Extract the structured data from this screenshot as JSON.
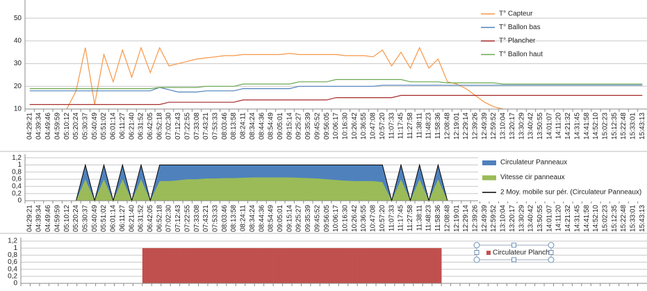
{
  "chart_data": [
    {
      "type": "line",
      "categories": [
        "04:29:21",
        "04:39:34",
        "04:49:46",
        "04:59:59",
        "05:10:12",
        "05:20:24",
        "05:30:37",
        "05:40:49",
        "05:51:02",
        "06:01:14",
        "06:11:27",
        "06:21:40",
        "06:31:52",
        "06:42:05",
        "06:52:18",
        "07:02:30",
        "07:12:43",
        "07:22:55",
        "07:33:08",
        "07:43:21",
        "07:53:33",
        "08:03:46",
        "08:13:58",
        "08:24:11",
        "08:34:24",
        "08:44:36",
        "08:54:49",
        "09:05:01",
        "09:15:14",
        "09:25:27",
        "09:35:39",
        "09:45:52",
        "09:56:05",
        "10:06:17",
        "10:16:30",
        "10:26:42",
        "10:36:55",
        "10:47:08",
        "10:57:20",
        "11:07:33",
        "11:17:45",
        "11:27:58",
        "11:38:11",
        "11:48:23",
        "11:58:36",
        "12:08:48",
        "12:19:01",
        "12:29:14",
        "12:39:26",
        "12:49:39",
        "12:59:52",
        "13:10:04",
        "13:20:17",
        "13:30:29",
        "13:40:42",
        "13:50:55",
        "14:01:07",
        "14:11:20",
        "14:21:32",
        "14:31:45",
        "14:41:58",
        "14:52:10",
        "15:02:23",
        "15:12:35",
        "15:22:48",
        "15:33:01",
        "15:43:13"
      ],
      "series": [
        {
          "name": "T° Capteur",
          "color": "#f79646",
          "values": [
            null,
            null,
            null,
            null,
            10,
            18,
            37,
            12,
            34,
            22,
            36,
            24,
            37,
            26,
            37,
            29,
            30,
            31,
            32,
            32.5,
            33,
            33.5,
            33.5,
            34,
            34,
            34,
            34,
            34,
            34.5,
            34,
            34,
            34,
            34,
            34,
            33.5,
            33.5,
            33.5,
            33,
            36,
            29,
            35,
            28,
            37,
            28,
            32,
            22,
            21,
            19,
            16,
            13,
            11,
            10,
            null,
            null,
            null,
            null,
            null,
            null,
            null,
            null,
            null,
            null,
            null,
            null,
            null,
            null,
            null
          ]
        },
        {
          "name": "T° Ballon bas",
          "color": "#4f81bd",
          "values": [
            18,
            18,
            18,
            18,
            18,
            18,
            18,
            18,
            18,
            18,
            18,
            18,
            18,
            18,
            19.5,
            18.5,
            17.5,
            17.5,
            17.5,
            18,
            18,
            18,
            18,
            19,
            19,
            19,
            19,
            19,
            19,
            20,
            20,
            20,
            20,
            20,
            20,
            20,
            20,
            20,
            20.5,
            20.5,
            20.5,
            20.5,
            20.5,
            20.5,
            20.5,
            20.5,
            20.5,
            20.5,
            20.5,
            20.5,
            20.5,
            20.5,
            20.5,
            20.5,
            20.5,
            20.5,
            20.5,
            20.5,
            20.5,
            20.5,
            20.5,
            20.5,
            20.5,
            20.5,
            20.5,
            20.5,
            20.5
          ]
        },
        {
          "name": "T° Plancher",
          "color": "#a52a2a",
          "values": [
            12,
            12,
            12,
            12,
            12,
            12,
            12,
            12,
            12,
            12,
            12,
            12,
            12,
            12,
            12,
            13,
            13,
            13,
            13,
            13,
            13,
            13,
            13,
            14,
            14,
            14,
            14,
            14,
            14,
            14,
            14,
            14,
            14,
            15,
            15,
            15,
            15,
            15,
            15,
            15,
            16,
            16,
            16,
            16,
            16,
            16,
            16,
            16,
            16,
            16,
            16,
            16,
            16,
            16,
            16,
            16,
            16,
            16,
            16,
            16,
            16,
            16,
            16,
            16,
            16,
            16,
            16
          ]
        },
        {
          "name": "T° Ballon haut",
          "color": "#6aa84f",
          "values": [
            19,
            19,
            19,
            19,
            19,
            19,
            19,
            19,
            19,
            19,
            19,
            19,
            19,
            19,
            19.5,
            19.5,
            19.5,
            19.5,
            19.5,
            20,
            20,
            20,
            20,
            21,
            21,
            21,
            21,
            21,
            21,
            22,
            22,
            22,
            22,
            23,
            23,
            23,
            23,
            23,
            23,
            23,
            23,
            22,
            22,
            22,
            22,
            21.5,
            21.5,
            21.5,
            21.5,
            21.5,
            21.5,
            21,
            21,
            21,
            21,
            21,
            21,
            21,
            21,
            21,
            21,
            21,
            21,
            21,
            21,
            21,
            21
          ]
        }
      ],
      "ylim": [
        10,
        58
      ],
      "yticks": [
        10,
        20,
        30,
        40,
        50
      ],
      "grid": true
    },
    {
      "type": "area",
      "categories": [
        "04:29:21",
        "04:39:34",
        "04:49:46",
        "04:59:59",
        "05:10:12",
        "05:20:24",
        "05:30:37",
        "05:40:49",
        "05:51:02",
        "06:01:14",
        "06:11:27",
        "06:21:40",
        "06:31:52",
        "06:42:05",
        "06:52:18",
        "07:02:30",
        "07:12:43",
        "07:22:55",
        "07:33:08",
        "07:43:21",
        "07:53:33",
        "08:03:46",
        "08:13:58",
        "08:24:11",
        "08:34:24",
        "08:44:36",
        "08:54:49",
        "09:05:01",
        "09:15:14",
        "09:25:27",
        "09:35:39",
        "09:45:52",
        "09:56:05",
        "10:06:17",
        "10:16:30",
        "10:26:42",
        "10:36:55",
        "10:47:08",
        "10:57:20",
        "11:07:33",
        "11:17:45",
        "11:27:58",
        "11:38:11",
        "11:48:23",
        "11:58:36",
        "12:08:48",
        "12:19:01",
        "12:29:14",
        "12:39:26",
        "12:49:39",
        "12:59:52",
        "13:10:04",
        "13:20:17",
        "13:30:29",
        "13:40:42",
        "13:50:55",
        "14:01:07",
        "14:11:20",
        "14:21:32",
        "14:31:45",
        "14:41:58",
        "14:52:10",
        "15:02:23",
        "15:12:35",
        "15:22:48",
        "15:33:01",
        "15:43:13"
      ],
      "series": [
        {
          "name": "Circulateur Panneaux",
          "color": "#4f81bd",
          "values": [
            0,
            0,
            0,
            0,
            0,
            0,
            1,
            0,
            1,
            0,
            1,
            0,
            1,
            0,
            1,
            1,
            1,
            1,
            1,
            1,
            1,
            1,
            1,
            1,
            1,
            1,
            1,
            1,
            1,
            1,
            1,
            1,
            1,
            1,
            1,
            1,
            1,
            1,
            1,
            0,
            1,
            0,
            1,
            0,
            1,
            0,
            0,
            0,
            0,
            0,
            0,
            0,
            0,
            0,
            0,
            0,
            0,
            0,
            0,
            0,
            0,
            0,
            0,
            0,
            0,
            0,
            0
          ]
        },
        {
          "name": "Vitesse cir panneaux",
          "color": "#9bbb59",
          "values": [
            0,
            0,
            0,
            0,
            0,
            0,
            0.6,
            0,
            0.6,
            0,
            0.6,
            0,
            0.6,
            0,
            0.55,
            0.55,
            0.57,
            0.6,
            0.6,
            0.62,
            0.62,
            0.63,
            0.63,
            0.64,
            0.65,
            0.65,
            0.65,
            0.65,
            0.65,
            0.64,
            0.63,
            0.62,
            0.6,
            0.58,
            0.56,
            0.55,
            0.55,
            0.55,
            0.52,
            0,
            0.6,
            0,
            0.6,
            0,
            0.6,
            0,
            0,
            0,
            0,
            0,
            0,
            0,
            0,
            0,
            0,
            0,
            0,
            0,
            0,
            0,
            0,
            0,
            0,
            0,
            0,
            0,
            0
          ]
        },
        {
          "name": "2 Moy. mobile sur pér. (Circulateur Panneaux)",
          "color": "#000000",
          "type": "line",
          "values": [
            0,
            0,
            0,
            0,
            0,
            0,
            1,
            0,
            1,
            0,
            1,
            0,
            1,
            0,
            1,
            1,
            1,
            1,
            1,
            1,
            1,
            1,
            1,
            1,
            1,
            1,
            1,
            1,
            1,
            1,
            1,
            1,
            1,
            1,
            1,
            1,
            1,
            1,
            1,
            0,
            1,
            0,
            1,
            0,
            1,
            0,
            0,
            0,
            0,
            0,
            0,
            0,
            0,
            0,
            0,
            0,
            0,
            0,
            0,
            0,
            0,
            0,
            0,
            0,
            0,
            0,
            0
          ]
        }
      ],
      "ylim": [
        0,
        1.3
      ],
      "yticks": [
        0,
        {
          "value": 0.2,
          "label": "0,2"
        },
        {
          "value": 0.4,
          "label": "0,4"
        },
        {
          "value": 0.6,
          "label": "0,6"
        },
        {
          "value": 0.8,
          "label": "0,8"
        },
        1,
        {
          "value": 1.2,
          "label": "1,2"
        }
      ],
      "grid": true
    },
    {
      "type": "bar",
      "categories": [
        null,
        null,
        null,
        null,
        null,
        null,
        null,
        null,
        null,
        null,
        null,
        null,
        null,
        null,
        null,
        null,
        null,
        null,
        null,
        null,
        null,
        null,
        null,
        null,
        null,
        null,
        null,
        null,
        null,
        null,
        null,
        null,
        null,
        null,
        null,
        null,
        null,
        null,
        null,
        null,
        null,
        null,
        null,
        null,
        null,
        null,
        null,
        null,
        null,
        null,
        null,
        null,
        null,
        null,
        null,
        null,
        null,
        null,
        null,
        null,
        null,
        null,
        null,
        null,
        null,
        null,
        null
      ],
      "series": [
        {
          "name": "Circulateur Planche",
          "color": "#c0504d",
          "values": [
            0,
            0,
            0,
            0,
            0,
            0,
            0,
            0,
            0,
            0,
            0,
            0,
            0,
            1,
            1,
            1,
            1,
            1,
            1,
            1,
            1,
            1,
            1,
            1,
            1,
            1,
            1,
            1,
            1,
            1,
            1,
            1,
            1,
            1,
            1,
            1,
            1,
            1,
            1,
            1,
            1,
            1,
            1,
            1,
            1,
            0,
            0,
            0,
            0,
            0,
            0,
            0,
            0,
            0,
            0,
            0,
            0,
            0,
            0,
            0,
            0,
            0,
            0,
            0,
            0,
            0,
            0
          ]
        }
      ],
      "ylim": [
        0,
        1.3
      ],
      "yticks": [
        0,
        {
          "value": 0.2,
          "label": "0,2"
        },
        {
          "value": 0.4,
          "label": "0,4"
        },
        {
          "value": 0.6,
          "label": "0,6"
        },
        {
          "value": 0.8,
          "label": "0,8"
        },
        1,
        {
          "value": 1.2,
          "label": "1,2"
        }
      ],
      "grid": true
    }
  ]
}
